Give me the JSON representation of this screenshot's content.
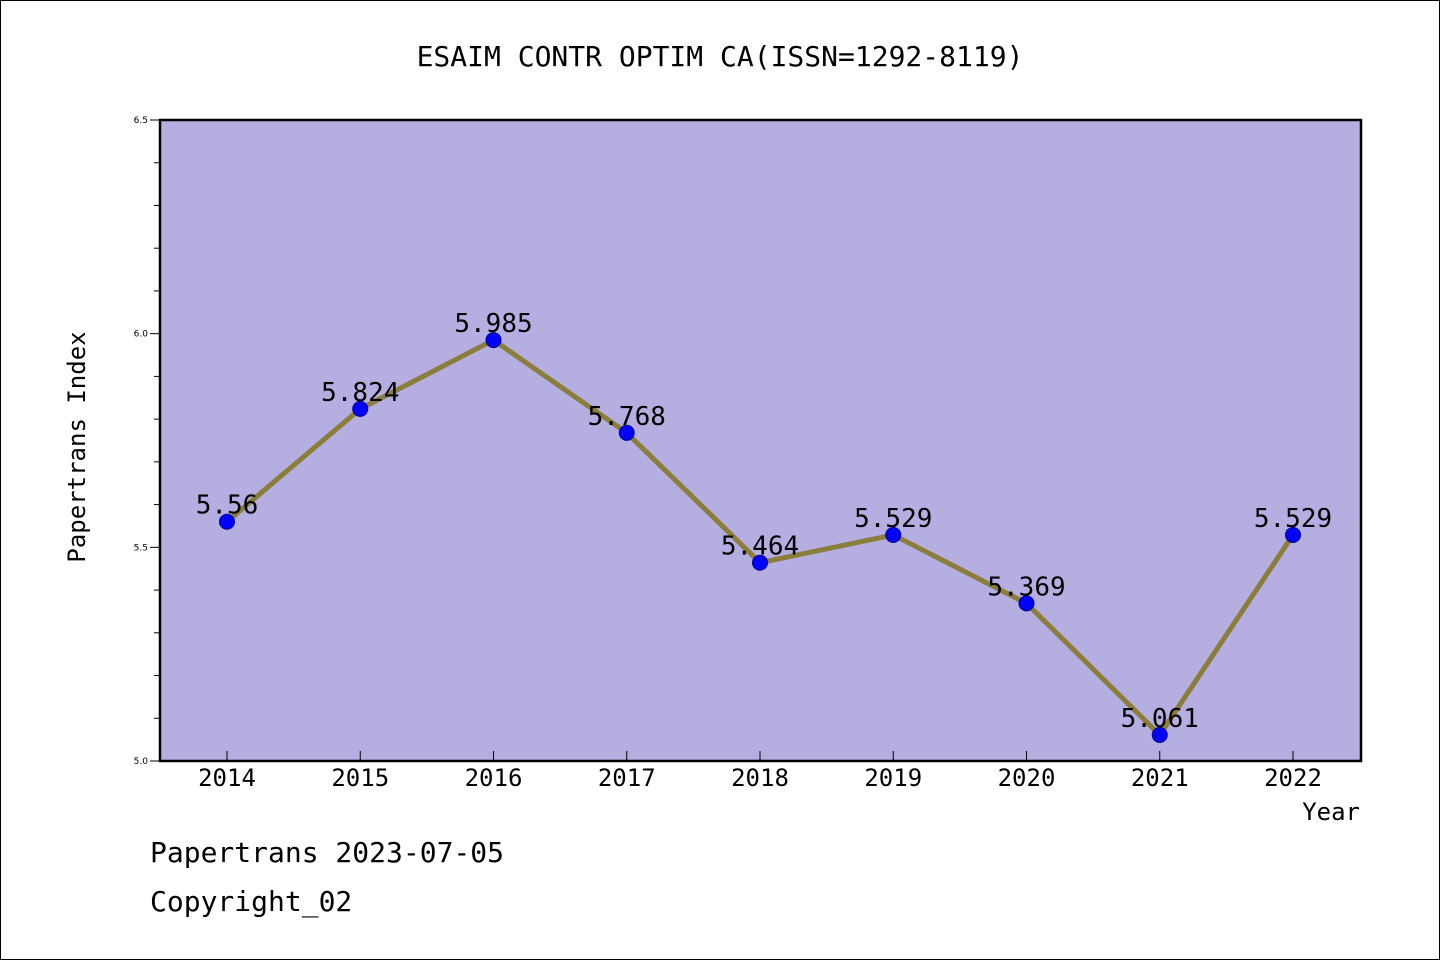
{
  "chart_data": {
    "type": "line",
    "title": "ESAIM CONTR OPTIM CA(ISSN=1292-8119)",
    "xlabel": "Year",
    "ylabel": "Papertrans Index",
    "categories": [
      "2014",
      "2015",
      "2016",
      "2017",
      "2018",
      "2019",
      "2020",
      "2021",
      "2022"
    ],
    "series": [
      {
        "values": [
          5.56,
          5.824,
          5.985,
          5.768,
          5.464,
          5.529,
          5.369,
          5.061,
          5.529
        ],
        "labels": [
          "5.56",
          "5.824",
          "5.985",
          "5.768",
          "5.464",
          "5.529",
          "5.369",
          "5.061",
          "5.529"
        ]
      }
    ],
    "ylim": [
      5.0,
      6.5
    ],
    "yticks": [
      "5.0",
      "5.5",
      "6.0",
      "6.5"
    ],
    "grid": false,
    "colors": {
      "plot_background": "#b5aee1",
      "line": "#8b7d3a",
      "marker": "#0000ff"
    }
  },
  "footer": {
    "line1": "Papertrans 2023-07-05",
    "line2": "Copyright_02"
  }
}
